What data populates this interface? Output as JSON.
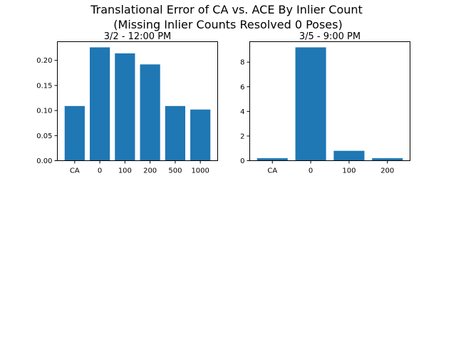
{
  "figure": {
    "suptitle_line1": "Translational Error of CA vs. ACE By Inlier Count",
    "suptitle_line2": "(Missing Inlier Counts Resolved 0 Poses)"
  },
  "bar_color": "#1f77b4",
  "chart_data": [
    {
      "type": "bar",
      "title": "3/2 - 12:00 PM",
      "categories": [
        "CA",
        "0",
        "100",
        "200",
        "500",
        "1000"
      ],
      "values": [
        0.109,
        0.226,
        0.214,
        0.192,
        0.109,
        0.102
      ],
      "ylim": [
        0,
        0.2373
      ],
      "yticks": [
        0.0,
        0.05,
        0.1,
        0.15,
        0.2
      ],
      "ytick_labels": [
        "0.00",
        "0.05",
        "0.10",
        "0.15",
        "0.20"
      ],
      "xlabel": "",
      "ylabel": ""
    },
    {
      "type": "bar",
      "title": "3/5 - 9:00 PM",
      "categories": [
        "CA",
        "0",
        "100",
        "200"
      ],
      "values": [
        0.2,
        9.2,
        0.8,
        0.2
      ],
      "ylim": [
        0,
        9.66
      ],
      "yticks": [
        0,
        2,
        4,
        6,
        8
      ],
      "ytick_labels": [
        "0",
        "2",
        "4",
        "6",
        "8"
      ],
      "xlabel": "",
      "ylabel": ""
    }
  ]
}
